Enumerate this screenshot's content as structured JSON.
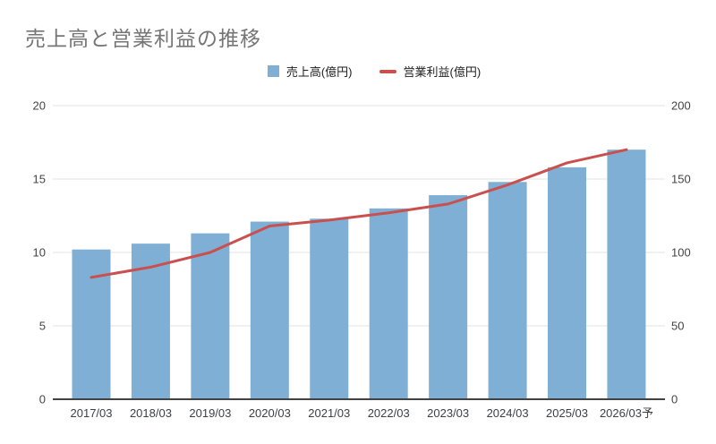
{
  "page": {
    "title": "売上高と営業利益の推移"
  },
  "legend": {
    "items": [
      {
        "label": "売上高(億円)",
        "marker": "square",
        "color": "#7fafd4"
      },
      {
        "label": "営業利益(億円)",
        "marker": "dash",
        "color": "#c9504e"
      }
    ]
  },
  "chart_data": {
    "type": "combo-bar-line",
    "title": "売上高と営業利益の推移",
    "categories": [
      "2017/03",
      "2018/03",
      "2019/03",
      "2020/03",
      "2021/03",
      "2022/03",
      "2023/03",
      "2024/03",
      "2025/03",
      "2026/03予"
    ],
    "series": [
      {
        "name": "売上高(億円)",
        "type": "bar",
        "axis": "left",
        "color": "#7fafd4",
        "values": [
          10.2,
          10.6,
          11.3,
          12.1,
          12.3,
          13.0,
          13.9,
          14.8,
          15.8,
          17.0
        ]
      },
      {
        "name": "営業利益(億円)",
        "type": "line",
        "axis": "right",
        "color": "#c9504e",
        "values": [
          83,
          90,
          100,
          118,
          122,
          127,
          133,
          146,
          161,
          170
        ]
      }
    ],
    "left_axis": {
      "min": 0,
      "max": 20,
      "ticks": [
        0,
        5,
        10,
        15,
        20
      ],
      "tick_labels": [
        "0",
        "5",
        "10",
        "15",
        "20"
      ]
    },
    "right_axis": {
      "min": 0,
      "max": 200,
      "ticks": [
        0,
        50,
        100,
        150,
        200
      ],
      "tick_labels": [
        "0",
        "50",
        "100",
        "150",
        "200"
      ]
    },
    "grid": true,
    "legend_position": "top-center"
  },
  "colors": {
    "background": "#ffffff",
    "title": "#757575",
    "grid": "#e3e3e3",
    "axis_line": "#424242",
    "y_tick_label": "#444444",
    "x_tick_label": "#3c4043",
    "bar": "#7fafd4",
    "line": "#c9504e"
  }
}
